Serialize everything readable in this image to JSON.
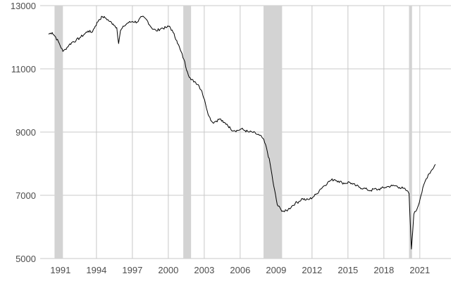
{
  "chart_data": {
    "type": "line",
    "title": "",
    "xlabel": "",
    "ylabel": "",
    "xlim": [
      1989.3,
      2023.6
    ],
    "ylim": [
      5000,
      13000
    ],
    "x_ticks": [
      1991,
      1994,
      1997,
      2000,
      2003,
      2006,
      2009,
      2012,
      2015,
      2018,
      2021
    ],
    "x_tick_labels": [
      "1991",
      "1994",
      "1997",
      "2000",
      "2003",
      "2006",
      "2009",
      "2012",
      "2015",
      "2018",
      "2021"
    ],
    "y_ticks": [
      5000,
      7000,
      9000,
      11000,
      13000
    ],
    "y_tick_labels": [
      "5000",
      "7000",
      "9000",
      "11000",
      "13000"
    ],
    "grid": true,
    "colors": {
      "line": "#000000",
      "recession_band": "#d3d3d3",
      "grid": "#c8c8c8",
      "tick_text": "#4d4d4d"
    },
    "recession_periods": [
      {
        "start": 1990.5,
        "end": 1991.2
      },
      {
        "start": 2001.25,
        "end": 2001.9
      },
      {
        "start": 2007.95,
        "end": 2009.5
      },
      {
        "start": 2020.1,
        "end": 2020.35
      }
    ],
    "series": [
      {
        "x": [
          1990.0,
          1990.3,
          1990.6,
          1990.9,
          1991.2,
          1991.4,
          1991.7,
          1992.0,
          1992.3,
          1992.6,
          1993.0,
          1993.3,
          1993.6,
          1993.9,
          1994.2,
          1994.5,
          1994.8,
          1995.1,
          1995.4,
          1995.7,
          1995.85,
          1996.0,
          1996.3,
          1996.6,
          1997.0,
          1997.4,
          1997.8,
          1998.2,
          1998.6,
          1999.0,
          1999.4,
          1999.8,
          2000.1,
          2000.4,
          2000.7,
          2001.0,
          2001.3,
          2001.6,
          2001.9,
          2002.2,
          2002.5,
          2002.8,
          2003.1,
          2003.4,
          2003.7,
          2004.0,
          2004.3,
          2004.6,
          2004.9,
          2005.2,
          2005.5,
          2005.8,
          2006.1,
          2006.4,
          2006.7,
          2007.0,
          2007.3,
          2007.6,
          2007.9,
          2008.2,
          2008.5,
          2008.8,
          2009.1,
          2009.4,
          2009.7,
          2010.0,
          2010.3,
          2010.6,
          2010.9,
          2011.2,
          2011.5,
          2011.8,
          2012.1,
          2012.4,
          2012.7,
          2013.0,
          2013.3,
          2013.6,
          2013.9,
          2014.2,
          2014.5,
          2014.8,
          2015.1,
          2015.4,
          2015.7,
          2016.0,
          2016.3,
          2016.6,
          2016.9,
          2017.2,
          2017.5,
          2017.8,
          2018.1,
          2018.4,
          2018.7,
          2019.0,
          2019.3,
          2019.6,
          2019.9,
          2020.1,
          2020.3,
          2020.5,
          2020.8,
          2021.1,
          2021.4,
          2021.7,
          2022.0,
          2022.3
        ],
        "y": [
          12100,
          12150,
          12000,
          11800,
          11550,
          11620,
          11750,
          11850,
          11900,
          11980,
          12100,
          12200,
          12150,
          12350,
          12550,
          12650,
          12600,
          12500,
          12420,
          12300,
          11800,
          12200,
          12350,
          12450,
          12500,
          12480,
          12650,
          12550,
          12300,
          12200,
          12280,
          12300,
          12350,
          12150,
          11900,
          11600,
          11300,
          10900,
          10650,
          10600,
          10500,
          10300,
          9900,
          9500,
          9300,
          9350,
          9420,
          9300,
          9250,
          9100,
          9050,
          9050,
          9100,
          9050,
          9000,
          9000,
          8950,
          8900,
          8800,
          8500,
          8000,
          7300,
          6700,
          6550,
          6480,
          6550,
          6650,
          6750,
          6800,
          6900,
          6850,
          6880,
          6950,
          7050,
          7200,
          7300,
          7400,
          7480,
          7500,
          7450,
          7400,
          7380,
          7420,
          7350,
          7300,
          7250,
          7220,
          7180,
          7150,
          7200,
          7180,
          7220,
          7250,
          7280,
          7300,
          7300,
          7250,
          7220,
          7150,
          7050,
          5300,
          6400,
          6600,
          7000,
          7400,
          7650,
          7800,
          7980
        ]
      }
    ]
  }
}
